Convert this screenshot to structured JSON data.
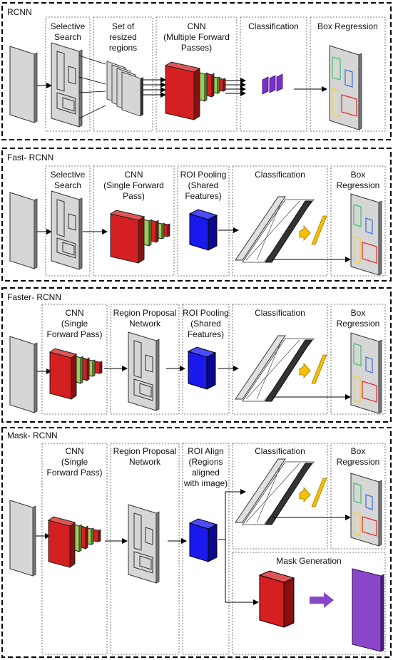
{
  "sections": [
    {
      "title": "RCNN",
      "stages": [
        "Selective\nSearch",
        "Set of\nresized\nregions",
        "CNN\n(Multiple Forward\nPasses)",
        "Classification",
        "Box Regression"
      ]
    },
    {
      "title": "Fast- RCNN",
      "stages": [
        "Selective\nSearch",
        "CNN\n(Single Forward\nPass)",
        "ROI Pooling\n(Shared\nFeatures)",
        "Classification",
        "Box\nRegression"
      ]
    },
    {
      "title": "Faster- RCNN",
      "stages": [
        "CNN\n(Single\nForward Pass)",
        "Region Proposal\nNetwork",
        "ROI Pooling\n(Shared\nFeatures)",
        "Classification",
        "Box\nRegression"
      ]
    },
    {
      "title": "Mask- RCNN",
      "stages": [
        "CNN\n(Single\nForward Pass)",
        "Region Proposal\nNetwork",
        "ROI Align\n(Regions\naligned\nwith image)",
        "Classification",
        "Box\nRegression",
        "Mask Generation"
      ]
    }
  ],
  "colors": {
    "cnn_red": "#d42020",
    "cnn_green": "#9acd5a",
    "roi_blue": "#1a1aee",
    "class_yellow": "#f5c000",
    "class_purple": "#7b2fc9",
    "mask_purple": "#8a46c8"
  }
}
